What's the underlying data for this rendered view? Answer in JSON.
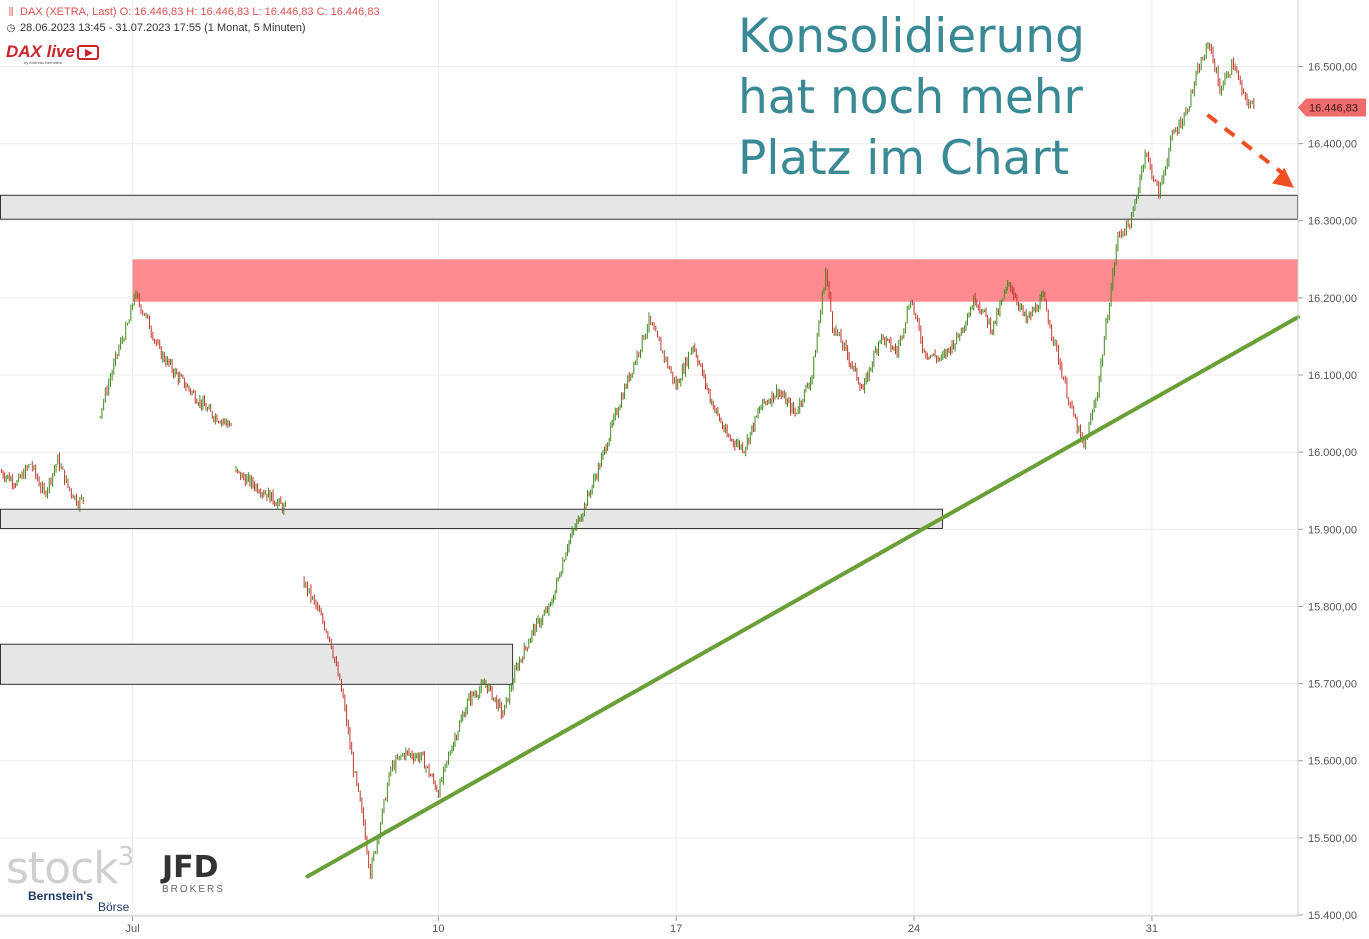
{
  "header": {
    "symbol_line": "DAX (XETRA, Last)  O: 16.446,83  H: 16.446,83  L: 16.446,83  C: 16.446,83",
    "range_line": "28.06.2023 13:45 - 31.07.2023 17:55   (1 Monat, 5 Minuten)"
  },
  "brand": {
    "dax_live": "DAX live",
    "dax_live_sub": "by Andreas Bernstein",
    "stock3": "stock",
    "stock3_sup": "3",
    "jfd": "JFD",
    "jfd_sub": "BROKERS",
    "bernstein": "Bernstein's",
    "boerse": "Börse"
  },
  "headline": [
    "Konsolidierung",
    "hat noch mehr",
    "Platz im Chart"
  ],
  "colors": {
    "accent_text": "#3a8a96",
    "up_candle": "#3f8a1e",
    "down_candle": "#c0392b",
    "trendline": "#6a9f36",
    "red_zone": "#ff8a90",
    "grey_zone": "#e6e6e6",
    "last_price_badge": "#f06b6b",
    "arrow": "#f04e23"
  },
  "chart_data": {
    "type": "candlestick",
    "title": "DAX (XETRA, Last)",
    "ylim": [
      15400,
      16560
    ],
    "y_ticks": [
      15400,
      15500,
      15600,
      15700,
      15800,
      15900,
      16000,
      16100,
      16200,
      16300,
      16400,
      16500
    ],
    "y_tick_labels": [
      "15.400,00",
      "15.500,00",
      "15.600,00",
      "15.700,00",
      "15.800,00",
      "15.900,00",
      "16.000,00",
      "16.100,00",
      "16.200,00",
      "16.300,00",
      "16.400,00",
      "16.500,00"
    ],
    "x_tick_labels": [
      "Jul",
      "10",
      "17",
      "24",
      "31"
    ],
    "x_tick_positions": [
      1,
      10,
      17,
      24,
      31
    ],
    "x_range": [
      -2.9,
      35.3
    ],
    "last_price": 16446.83,
    "last_price_label": "16.446,83",
    "grid": true,
    "zones": [
      {
        "type": "resistance",
        "from": 16195,
        "to": 16250,
        "x_start": 1,
        "x_end": 35.3,
        "color": "red"
      },
      {
        "type": "band",
        "from": 16302,
        "to": 16333,
        "x_start": -2.9,
        "x_end": 35.3,
        "color": "grey"
      },
      {
        "type": "band",
        "from": 15901,
        "to": 15926,
        "x_start": -2.9,
        "x_end": 24.85,
        "color": "grey"
      },
      {
        "type": "band",
        "from": 15699,
        "to": 15751,
        "x_start": -2.9,
        "x_end": 12.2,
        "color": "grey"
      }
    ],
    "trendline": {
      "x1": 6.15,
      "y1": 15450,
      "x2": 35.3,
      "y2": 16175
    },
    "forecast_arrow": {
      "x1": 32.4,
      "y1": 16445,
      "x2": 35.3,
      "y2": 16340
    },
    "path": [
      {
        "x": -2.9,
        "y": 15975
      },
      {
        "x": -2.4,
        "y": 15960
      },
      {
        "x": -2.0,
        "y": 15985
      },
      {
        "x": -1.6,
        "y": 15945
      },
      {
        "x": -1.2,
        "y": 15990
      },
      {
        "x": -0.9,
        "y": 15955
      },
      {
        "x": -0.6,
        "y": 15935
      },
      {
        "x": -0.45,
        "y": 15940
      },
      {
        "x": 0.0,
        "y": 16045
      },
      {
        "x": 0.3,
        "y": 16090
      },
      {
        "x": 0.6,
        "y": 16135
      },
      {
        "x": 0.9,
        "y": 16170
      },
      {
        "x": 1.05,
        "y": 16205
      },
      {
        "x": 1.4,
        "y": 16175
      },
      {
        "x": 1.8,
        "y": 16130
      },
      {
        "x": 2.3,
        "y": 16100
      },
      {
        "x": 2.8,
        "y": 16075
      },
      {
        "x": 3.3,
        "y": 16050
      },
      {
        "x": 3.9,
        "y": 16035
      },
      {
        "x": 4.0,
        "y": 15975
      },
      {
        "x": 4.5,
        "y": 15960
      },
      {
        "x": 5.0,
        "y": 15945
      },
      {
        "x": 5.5,
        "y": 15925
      },
      {
        "x": 6.0,
        "y": 15835
      },
      {
        "x": 6.4,
        "y": 15800
      },
      {
        "x": 6.8,
        "y": 15760
      },
      {
        "x": 7.2,
        "y": 15680
      },
      {
        "x": 7.5,
        "y": 15590
      },
      {
        "x": 7.8,
        "y": 15520
      },
      {
        "x": 8.0,
        "y": 15455
      },
      {
        "x": 8.3,
        "y": 15520
      },
      {
        "x": 8.6,
        "y": 15590
      },
      {
        "x": 9.0,
        "y": 15610
      },
      {
        "x": 9.5,
        "y": 15605
      },
      {
        "x": 10.0,
        "y": 15560
      },
      {
        "x": 10.4,
        "y": 15620
      },
      {
        "x": 10.9,
        "y": 15680
      },
      {
        "x": 11.4,
        "y": 15700
      },
      {
        "x": 11.9,
        "y": 15660
      },
      {
        "x": 12.3,
        "y": 15720
      },
      {
        "x": 12.8,
        "y": 15770
      },
      {
        "x": 13.3,
        "y": 15800
      },
      {
        "x": 13.8,
        "y": 15880
      },
      {
        "x": 14.3,
        "y": 15930
      },
      {
        "x": 14.8,
        "y": 15990
      },
      {
        "x": 15.3,
        "y": 16060
      },
      {
        "x": 15.8,
        "y": 16120
      },
      {
        "x": 16.2,
        "y": 16170
      },
      {
        "x": 16.6,
        "y": 16130
      },
      {
        "x": 17.0,
        "y": 16085
      },
      {
        "x": 17.5,
        "y": 16140
      },
      {
        "x": 18.0,
        "y": 16070
      },
      {
        "x": 18.5,
        "y": 16020
      },
      {
        "x": 19.0,
        "y": 16005
      },
      {
        "x": 19.5,
        "y": 16060
      },
      {
        "x": 20.0,
        "y": 16080
      },
      {
        "x": 20.5,
        "y": 16050
      },
      {
        "x": 21.0,
        "y": 16100
      },
      {
        "x": 21.4,
        "y": 16235
      },
      {
        "x": 21.6,
        "y": 16165
      },
      {
        "x": 22.0,
        "y": 16130
      },
      {
        "x": 22.5,
        "y": 16080
      },
      {
        "x": 23.0,
        "y": 16150
      },
      {
        "x": 23.5,
        "y": 16130
      },
      {
        "x": 23.9,
        "y": 16200
      },
      {
        "x": 24.3,
        "y": 16130
      },
      {
        "x": 24.8,
        "y": 16120
      },
      {
        "x": 25.3,
        "y": 16150
      },
      {
        "x": 25.8,
        "y": 16200
      },
      {
        "x": 26.3,
        "y": 16160
      },
      {
        "x": 26.8,
        "y": 16220
      },
      {
        "x": 27.3,
        "y": 16170
      },
      {
        "x": 27.8,
        "y": 16200
      },
      {
        "x": 28.2,
        "y": 16130
      },
      {
        "x": 28.6,
        "y": 16060
      },
      {
        "x": 29.0,
        "y": 16005
      },
      {
        "x": 29.4,
        "y": 16080
      },
      {
        "x": 29.7,
        "y": 16180
      },
      {
        "x": 30.0,
        "y": 16280
      },
      {
        "x": 30.4,
        "y": 16300
      },
      {
        "x": 30.8,
        "y": 16390
      },
      {
        "x": 31.2,
        "y": 16335
      },
      {
        "x": 31.6,
        "y": 16410
      },
      {
        "x": 32.0,
        "y": 16440
      },
      {
        "x": 32.4,
        "y": 16500
      },
      {
        "x": 32.7,
        "y": 16530
      },
      {
        "x": 33.0,
        "y": 16470
      },
      {
        "x": 33.4,
        "y": 16505
      },
      {
        "x": 33.7,
        "y": 16460
      },
      {
        "x": 34.0,
        "y": 16446.83
      }
    ],
    "gaps_after_x": [
      -0.45,
      3.9,
      5.5
    ]
  }
}
